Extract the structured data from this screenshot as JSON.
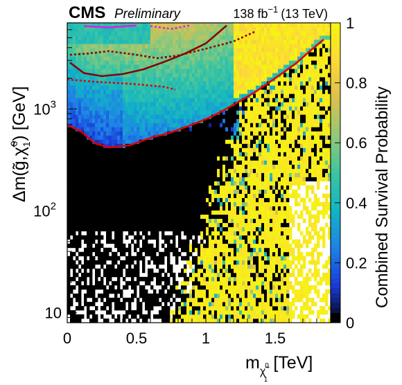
{
  "header": {
    "experiment": "CMS",
    "status": "Preliminary",
    "luminosity_prefix": "138 fb",
    "luminosity_exponent": "−1",
    "energy": "(13 TeV)"
  },
  "chart_data": {
    "type": "heatmap",
    "title": "",
    "xlabel": {
      "main": "m",
      "subscript": "χ̃",
      "subsubscript": "1",
      "subsuperscript": "0",
      "unit": "[TeV]"
    },
    "ylabel": {
      "prefix": "Δm(",
      "gluino": "g̃",
      "sep": ",",
      "neutralino": "χ̃",
      "sub": "1",
      "sup": "0",
      "suffix": ") [GeV]"
    },
    "zlabel": "Combined Survival Probability",
    "x_scale": "linear",
    "y_scale": "log",
    "xlim": [
      0,
      1.9
    ],
    "ylim": [
      8,
      7000
    ],
    "zlim": [
      0,
      1
    ],
    "x_ticks": [
      0,
      0.5,
      1,
      1.5
    ],
    "x_tick_labels": [
      "0",
      "0.5",
      "1",
      "1.5"
    ],
    "y_ticks": [
      10,
      100,
      1000
    ],
    "y_tick_labels": [
      "10",
      "10",
      "10"
    ],
    "y_tick_exponents": [
      "",
      "2",
      "3"
    ],
    "z_ticks": [
      0,
      0.2,
      0.4,
      0.6,
      0.8,
      1
    ],
    "z_tick_labels": [
      "0",
      "0.2",
      "0.4",
      "0.6",
      "0.8",
      "1"
    ],
    "colormap": [
      "#000000",
      "#1a3ad8",
      "#1e82e6",
      "#12b4c4",
      "#3dc5a0",
      "#93c878",
      "#dac04e",
      "#fdd838",
      "#f5f510"
    ],
    "regions": {
      "excluded_black": "low m, up to about 1 TeV and 1.2 TeV in Δm",
      "transition_blue": "band above the black region",
      "high_yellow": "high m and high Δm, survival near 1"
    },
    "contours": [
      {
        "color": "#e00000",
        "style": "solid",
        "points": [
          [
            0,
            700
          ],
          [
            0.1,
            600
          ],
          [
            0.2,
            460
          ],
          [
            0.3,
            420
          ],
          [
            0.45,
            440
          ],
          [
            0.6,
            520
          ],
          [
            0.75,
            590
          ],
          [
            0.9,
            700
          ],
          [
            1.05,
            850
          ],
          [
            1.2,
            1100
          ],
          [
            1.35,
            1450
          ],
          [
            1.5,
            2000
          ],
          [
            1.65,
            2800
          ],
          [
            1.75,
            3700
          ],
          [
            1.85,
            4800
          ]
        ]
      },
      {
        "color": "#e00000",
        "style": "dashed",
        "points": [
          [
            0,
            1950
          ],
          [
            0.1,
            1900
          ],
          [
            0.2,
            1850
          ],
          [
            0.35,
            1800
          ],
          [
            0.5,
            1750
          ],
          [
            0.6,
            1700
          ],
          [
            0.7,
            1650
          ],
          [
            0.78,
            1550
          ]
        ]
      },
      {
        "color": "#8b0000",
        "style": "solid",
        "points": [
          [
            0.02,
            2850
          ],
          [
            0.12,
            2250
          ],
          [
            0.25,
            2100
          ],
          [
            0.4,
            2200
          ],
          [
            0.55,
            2450
          ],
          [
            0.7,
            2900
          ],
          [
            0.85,
            3500
          ],
          [
            1.0,
            4400
          ],
          [
            1.15,
            6600
          ]
        ]
      },
      {
        "color": "#8b0000",
        "style": "dashed",
        "points": [
          [
            0.02,
            3400
          ],
          [
            0.15,
            3500
          ],
          [
            0.3,
            3700
          ],
          [
            0.5,
            3400
          ],
          [
            0.65,
            3150
          ],
          [
            0.8,
            3350
          ],
          [
            1.0,
            3900
          ],
          [
            1.2,
            4600
          ],
          [
            1.35,
            5700
          ]
        ]
      },
      {
        "color": "#e020e0",
        "style": "solid",
        "points": [
          [
            0.12,
            6500
          ],
          [
            0.3,
            6300
          ],
          [
            0.5,
            6600
          ]
        ]
      },
      {
        "color": "#e020e0",
        "style": "dashed",
        "points": [
          [
            0.6,
            6500
          ],
          [
            0.75,
            6100
          ],
          [
            0.88,
            6600
          ]
        ]
      }
    ]
  }
}
